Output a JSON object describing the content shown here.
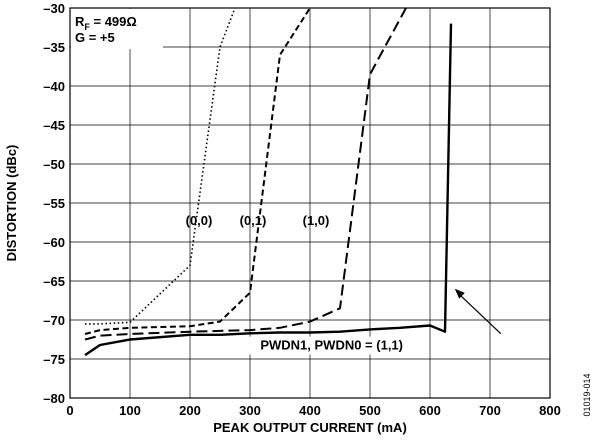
{
  "chart_data": {
    "type": "line",
    "xlabel": "PEAK OUTPUT CURRENT (mA)",
    "ylabel": "DISTORTION (dBc)",
    "xlim": [
      0,
      800
    ],
    "ylim": [
      -80,
      -30
    ],
    "xticks": [
      0,
      100,
      200,
      300,
      400,
      500,
      600,
      700,
      800
    ],
    "yticks": [
      -30,
      -35,
      -40,
      -45,
      -50,
      -55,
      -60,
      -65,
      -70,
      -75,
      -80
    ],
    "xtick_labels": [
      "0",
      "100",
      "200",
      "300",
      "400",
      "500",
      "600",
      "700",
      "800"
    ],
    "ytick_labels": [
      "–30",
      "–35",
      "–40",
      "–45",
      "–50",
      "–55",
      "–60",
      "–65",
      "–70",
      "–75",
      "–80"
    ],
    "grid": true,
    "conditions": {
      "rf_label": "R",
      "rf_sub": "F",
      "rf_value": " = 499Ω",
      "gain": "G = +5"
    },
    "figure_id": "01019-014",
    "series": [
      {
        "name": "(0,0)",
        "style": "dotted",
        "x": [
          25,
          50,
          100,
          200,
          250,
          275
        ],
        "y": [
          -70.5,
          -70.5,
          -70.3,
          -63.0,
          -35.0,
          -30.0
        ]
      },
      {
        "name": "(0,1)",
        "style": "dashed",
        "x": [
          25,
          50,
          100,
          200,
          250,
          300,
          350,
          400
        ],
        "y": [
          -71.8,
          -71.3,
          -71.0,
          -70.8,
          -70.2,
          -66.5,
          -36.0,
          -30.0
        ]
      },
      {
        "name": "(1,0)",
        "style": "long-dashed",
        "x": [
          25,
          50,
          100,
          200,
          300,
          350,
          400,
          450,
          500,
          560
        ],
        "y": [
          -72.5,
          -72.0,
          -71.8,
          -71.5,
          -71.3,
          -71.0,
          -70.2,
          -68.5,
          -38.5,
          -30.0
        ]
      },
      {
        "name": "PWDN1, PWDN0 = (1,1)",
        "style": "solid",
        "x": [
          25,
          50,
          100,
          200,
          250,
          300,
          350,
          400,
          450,
          500,
          550,
          600,
          625,
          635
        ],
        "y": [
          -74.5,
          -73.2,
          -72.5,
          -71.9,
          -71.9,
          -71.7,
          -71.6,
          -71.6,
          -71.5,
          -71.2,
          -71.0,
          -70.7,
          -71.5,
          -32.0
        ]
      }
    ],
    "labels": [
      {
        "text": "(0,0)",
        "x": 215,
        "y": -57.8
      },
      {
        "text": "(0,1)",
        "x": 305,
        "y": -57.8
      },
      {
        "text": "(1,0)",
        "x": 410,
        "y": -57.8
      }
    ],
    "arrow_label": {
      "text": "PWDN1, PWDN0 = (1,1)",
      "x": 555,
      "y": -73.8,
      "points_to_x": 638,
      "points_to_y": -66.0
    }
  }
}
